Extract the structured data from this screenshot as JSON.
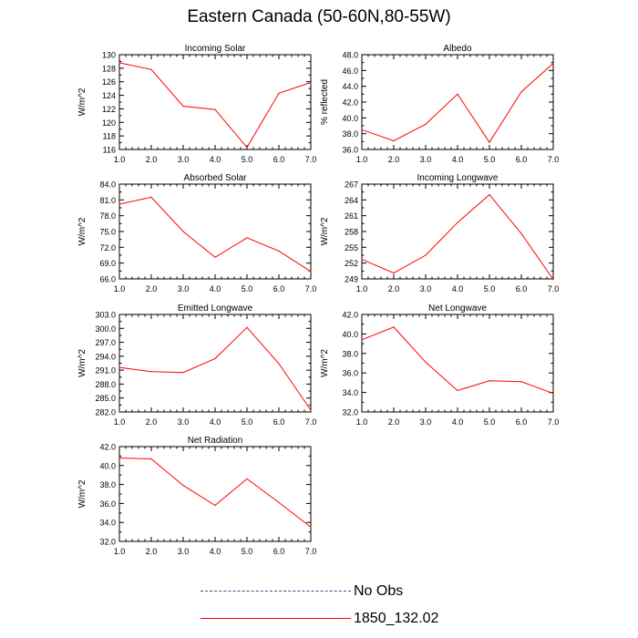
{
  "figure": {
    "title": "Eastern Canada (50-60N,80-55W)"
  },
  "chart_data": [
    {
      "type": "line",
      "title": "Incoming Solar",
      "ylabel": "W/m^2",
      "x": [
        1,
        2,
        3,
        4,
        5,
        6,
        7
      ],
      "xlim": [
        1,
        7
      ],
      "xtick_labels": [
        "1.0",
        "2.0",
        "3.0",
        "4.0",
        "5.0",
        "6.0",
        "7.0"
      ],
      "ylim": [
        116,
        130
      ],
      "ytick_values": [
        116,
        118,
        120,
        122,
        124,
        126,
        128,
        130
      ],
      "ytick_labels": [
        "116",
        "118",
        "120",
        "122",
        "124",
        "126",
        "128",
        "130"
      ],
      "series": [
        {
          "name": "1850_132.02",
          "values": [
            128.8,
            127.8,
            122.4,
            121.9,
            116.3,
            124.3,
            125.9
          ]
        }
      ]
    },
    {
      "type": "line",
      "title": "Albedo",
      "ylabel": "% reflected",
      "x": [
        1,
        2,
        3,
        4,
        5,
        6,
        7
      ],
      "xlim": [
        1,
        7
      ],
      "xtick_labels": [
        "1.0",
        "2.0",
        "3.0",
        "4.0",
        "5.0",
        "6.0",
        "7.0"
      ],
      "ylim": [
        36,
        48
      ],
      "ytick_values": [
        36,
        38,
        40,
        42,
        44,
        46,
        48
      ],
      "ytick_labels": [
        "36.0",
        "38.0",
        "40.0",
        "42.0",
        "44.0",
        "46.0",
        "48.0"
      ],
      "series": [
        {
          "name": "1850_132.02",
          "values": [
            38.5,
            37.1,
            39.2,
            43.0,
            36.9,
            43.3,
            46.9
          ]
        }
      ]
    },
    {
      "type": "line",
      "title": "Absorbed Solar",
      "ylabel": "W/m^2",
      "x": [
        1,
        2,
        3,
        4,
        5,
        6,
        7
      ],
      "xlim": [
        1,
        7
      ],
      "xtick_labels": [
        "1.0",
        "2.0",
        "3.0",
        "4.0",
        "5.0",
        "6.0",
        "7.0"
      ],
      "ylim": [
        66,
        84
      ],
      "ytick_values": [
        66,
        69,
        72,
        75,
        78,
        81,
        84
      ],
      "ytick_labels": [
        "66.0",
        "69.0",
        "72.0",
        "75.0",
        "78.0",
        "81.0",
        "84.0"
      ],
      "series": [
        {
          "name": "1850_132.02",
          "values": [
            80.2,
            81.5,
            75.0,
            70.1,
            73.8,
            71.3,
            67.4
          ]
        }
      ]
    },
    {
      "type": "line",
      "title": "Incoming Longwave",
      "ylabel": "W/m^2",
      "x": [
        1,
        2,
        3,
        4,
        5,
        6,
        7
      ],
      "xlim": [
        1,
        7
      ],
      "xtick_labels": [
        "1.0",
        "2.0",
        "3.0",
        "4.0",
        "5.0",
        "6.0",
        "7.0"
      ],
      "ylim": [
        249,
        267
      ],
      "ytick_values": [
        249,
        252,
        255,
        258,
        261,
        264,
        267
      ],
      "ytick_labels": [
        "249",
        "252",
        "255",
        "258",
        "261",
        "264",
        "267"
      ],
      "series": [
        {
          "name": "1850_132.02",
          "values": [
            252.7,
            250.1,
            253.5,
            259.7,
            265.0,
            257.6,
            248.9
          ]
        }
      ]
    },
    {
      "type": "line",
      "title": "Emitted Longwave",
      "ylabel": "W/m^2",
      "x": [
        1,
        2,
        3,
        4,
        5,
        6,
        7
      ],
      "xlim": [
        1,
        7
      ],
      "xtick_labels": [
        "1.0",
        "2.0",
        "3.0",
        "4.0",
        "5.0",
        "6.0",
        "7.0"
      ],
      "ylim": [
        282,
        303
      ],
      "ytick_values": [
        282,
        285,
        288,
        291,
        294,
        297,
        300,
        303
      ],
      "ytick_labels": [
        "282.0",
        "285.0",
        "288.0",
        "291.0",
        "294.0",
        "297.0",
        "300.0",
        "303.0"
      ],
      "series": [
        {
          "name": "1850_132.02",
          "values": [
            291.6,
            290.7,
            290.5,
            293.5,
            300.2,
            292.4,
            282.4
          ]
        }
      ]
    },
    {
      "type": "line",
      "title": "Net Longwave",
      "ylabel": "W/m^2",
      "x": [
        1,
        2,
        3,
        4,
        5,
        6,
        7
      ],
      "xlim": [
        1,
        7
      ],
      "xtick_labels": [
        "1.0",
        "2.0",
        "3.0",
        "4.0",
        "5.0",
        "6.0",
        "7.0"
      ],
      "ylim": [
        32,
        42
      ],
      "ytick_values": [
        32,
        34,
        36,
        38,
        40,
        42
      ],
      "ytick_labels": [
        "32.0",
        "34.0",
        "36.0",
        "38.0",
        "40.0",
        "42.0"
      ],
      "series": [
        {
          "name": "1850_132.02",
          "values": [
            39.4,
            40.7,
            37.1,
            34.2,
            35.2,
            35.1,
            33.9
          ]
        }
      ]
    },
    {
      "type": "line",
      "title": "Net Radiation",
      "ylabel": "W/m^2",
      "x": [
        1,
        2,
        3,
        4,
        5,
        6,
        7
      ],
      "xlim": [
        1,
        7
      ],
      "xtick_labels": [
        "1.0",
        "2.0",
        "3.0",
        "4.0",
        "5.0",
        "6.0",
        "7.0"
      ],
      "ylim": [
        32,
        42
      ],
      "ytick_values": [
        32,
        34,
        36,
        38,
        40,
        42
      ],
      "ytick_labels": [
        "32.0",
        "34.0",
        "36.0",
        "38.0",
        "40.0",
        "42.0"
      ],
      "series": [
        {
          "name": "1850_132.02",
          "values": [
            40.8,
            40.7,
            37.9,
            35.8,
            38.6,
            36.1,
            33.5
          ]
        }
      ]
    }
  ],
  "legend": {
    "items": [
      {
        "label": "No Obs",
        "style": "dashed",
        "color": "#4b4b8c"
      },
      {
        "label": "1850_132.02",
        "style": "solid",
        "color": "#ff0000"
      }
    ]
  },
  "colors": {
    "series_line": "#ff0000",
    "axis": "#000000"
  }
}
